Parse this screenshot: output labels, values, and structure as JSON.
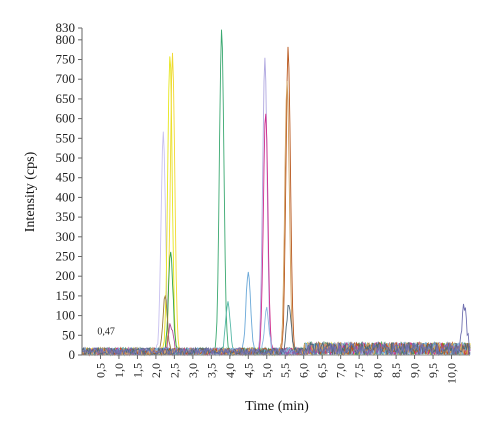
{
  "chart_data": {
    "type": "line",
    "xlabel": "Time (min)",
    "ylabel": "Intensity (cps)",
    "xlim": [
      0.0,
      10.5
    ],
    "ylim": [
      0,
      830
    ],
    "y_tick_labels": [
      "0",
      "50",
      "100",
      "150",
      "200",
      "250",
      "300",
      "350",
      "400",
      "450",
      "500",
      "550",
      "600",
      "650",
      "700",
      "750",
      "800",
      "830"
    ],
    "y_tick_values": [
      0,
      50,
      100,
      150,
      200,
      250,
      300,
      350,
      400,
      450,
      500,
      550,
      600,
      650,
      700,
      750,
      800,
      830
    ],
    "x_tick_labels": [
      "0,5",
      "1,0",
      "1,5",
      "2,0",
      "2,5",
      "3,0",
      "3,5",
      "4,0",
      "4,5",
      "5,0",
      "5,5",
      "6,0",
      "6,5",
      "7,0",
      "7,5",
      "8,0",
      "8,5",
      "9,0",
      "9,5",
      "10,0"
    ],
    "x_tick_values": [
      0.5,
      1.0,
      1.5,
      2.0,
      2.5,
      3.0,
      3.5,
      4.0,
      4.5,
      5.0,
      5.5,
      6.0,
      6.5,
      7.0,
      7.5,
      8.0,
      8.5,
      9.0,
      9.5,
      10.0
    ],
    "annotations": [
      {
        "text": "0,47",
        "x": 0.47,
        "y": 60
      }
    ],
    "series": [
      {
        "color": "#c8c0f0",
        "peaks": [
          {
            "t": 2.2,
            "h": 555
          }
        ]
      },
      {
        "color": "#e6e61a",
        "peaks": [
          {
            "t": 2.38,
            "h": 755
          }
        ]
      },
      {
        "color": "#f0d830",
        "peaks": [
          {
            "t": 2.45,
            "h": 750
          }
        ]
      },
      {
        "color": "#2ea04a",
        "peaks": [
          {
            "t": 2.4,
            "h": 255
          }
        ]
      },
      {
        "color": "#9a7a3a",
        "peaks": [
          {
            "t": 2.25,
            "h": 145
          }
        ]
      },
      {
        "color": "#b04a9a",
        "peaks": [
          {
            "t": 2.4,
            "h": 70
          }
        ]
      },
      {
        "color": "#3aa870",
        "peaks": [
          {
            "t": 3.78,
            "h": 820
          }
        ]
      },
      {
        "color": "#56b8a8",
        "peaks": [
          {
            "t": 3.95,
            "h": 130
          }
        ]
      },
      {
        "color": "#6aa8d8",
        "peaks": [
          {
            "t": 4.5,
            "h": 210
          }
        ]
      },
      {
        "color": "#b0a8e0",
        "peaks": [
          {
            "t": 4.95,
            "h": 740
          }
        ]
      },
      {
        "color": "#d02c8c",
        "peaks": [
          {
            "t": 4.97,
            "h": 610
          }
        ]
      },
      {
        "color": "#8ab8e0",
        "peaks": [
          {
            "t": 5.0,
            "h": 105
          }
        ]
      },
      {
        "color": "#b8561c",
        "peaks": [
          {
            "t": 5.58,
            "h": 770
          }
        ]
      },
      {
        "color": "#d2a060",
        "peaks": [
          {
            "t": 5.55,
            "h": 690
          }
        ]
      },
      {
        "color": "#506878",
        "peaks": [
          {
            "t": 5.6,
            "h": 120
          }
        ]
      },
      {
        "color": "#7070b0",
        "peaks": [
          {
            "t": 10.35,
            "h": 110
          }
        ]
      }
    ],
    "grid": false,
    "legend": "none"
  }
}
